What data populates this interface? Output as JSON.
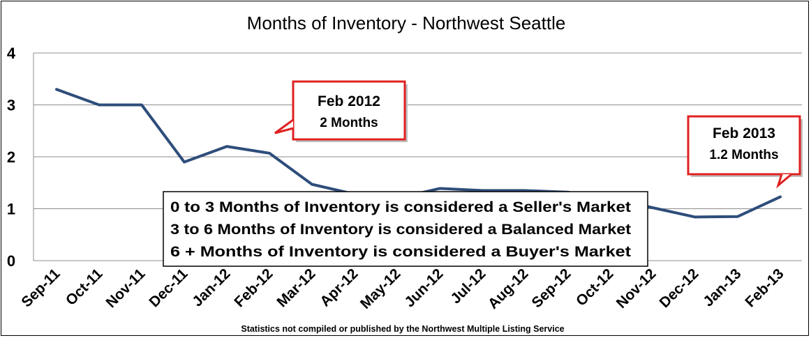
{
  "chart_data": {
    "type": "line",
    "title": "Months of Inventory - Northwest Seattle",
    "categories": [
      "Sep-11",
      "Oct-11",
      "Nov-11",
      "Dec-11",
      "Jan-12",
      "Feb-12",
      "Mar-12",
      "Apr-12",
      "May-12",
      "Jun-12",
      "Jul-12",
      "Aug-12",
      "Sep-12",
      "Oct-12",
      "Nov-12",
      "Dec-12",
      "Jan-13",
      "Feb-13"
    ],
    "series": [
      {
        "values": [
          3.3,
          3.0,
          3.0,
          1.9,
          2.2,
          2.07,
          1.47,
          1.28,
          1.2,
          1.39,
          1.35,
          1.35,
          1.32,
          1.2,
          1.02,
          0.84,
          0.85,
          1.23
        ]
      }
    ],
    "ylim": [
      0,
      4
    ],
    "yticks": [
      0,
      1,
      2,
      3,
      4
    ],
    "grid": true,
    "line_color": "#2E4D7B",
    "annotations": [
      {
        "category": "Feb-12",
        "line1": "Feb 2012",
        "line2": "2 Months"
      },
      {
        "category": "Feb-13",
        "line1": "Feb 2013",
        "line2": "1.2 Months"
      }
    ],
    "callout_border_color": "#E02020",
    "legend_box": [
      "0 to 3 Months of Inventory is considered a Seller's Market",
      "3 to 6 Months of Inventory is considered a Balanced Market",
      "6 +  Months of Inventory is considered a Buyer's Market"
    ],
    "source_note": "Statistics  not compiled or published by the Northwest Multiple Listing Service"
  }
}
